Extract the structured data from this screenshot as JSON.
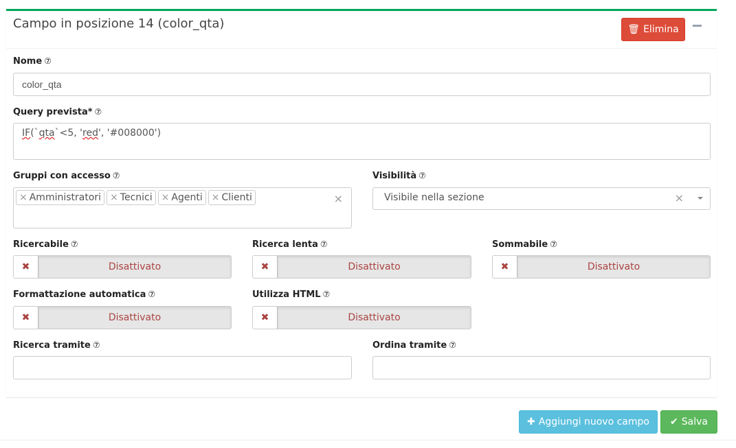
{
  "header": {
    "title": "Campo in posizione 14 (color_qta)",
    "delete_label": "Elimina",
    "collapse": "minus-icon"
  },
  "fields": {
    "nome": {
      "label": "Nome",
      "value": "color_qta"
    },
    "query": {
      "label": "Query prevista*",
      "value_parts": [
        "IF",
        "(`",
        "qta",
        "`<5, '",
        "red",
        "', '#008000')"
      ]
    },
    "gruppi": {
      "label": "Gruppi con accesso",
      "tags": [
        "Amministratori",
        "Tecnici",
        "Agenti",
        "Clienti"
      ]
    },
    "visibilita": {
      "label": "Visibilità",
      "value": "Visibile nella sezione"
    },
    "toggles": [
      {
        "label": "Ricercabile",
        "state": "Disattivato"
      },
      {
        "label": "Ricerca lenta",
        "state": "Disattivato"
      },
      {
        "label": "Sommabile",
        "state": "Disattivato"
      },
      {
        "label": "Formattazione automatica",
        "state": "Disattivato"
      },
      {
        "label": "Utilizza HTML",
        "state": "Disattivato"
      }
    ],
    "ricerca_tramite": {
      "label": "Ricerca tramite",
      "value": ""
    },
    "ordina_tramite": {
      "label": "Ordina tramite",
      "value": ""
    }
  },
  "footer": {
    "add_label": "Aggiungi nuovo campo",
    "save_label": "Salva"
  },
  "help_glyph": "?",
  "colors": {
    "accent": "#00a65a",
    "danger": "#dd4b39",
    "info": "#5bc0de",
    "success": "#5cb85c",
    "off_text": "#a94442"
  }
}
